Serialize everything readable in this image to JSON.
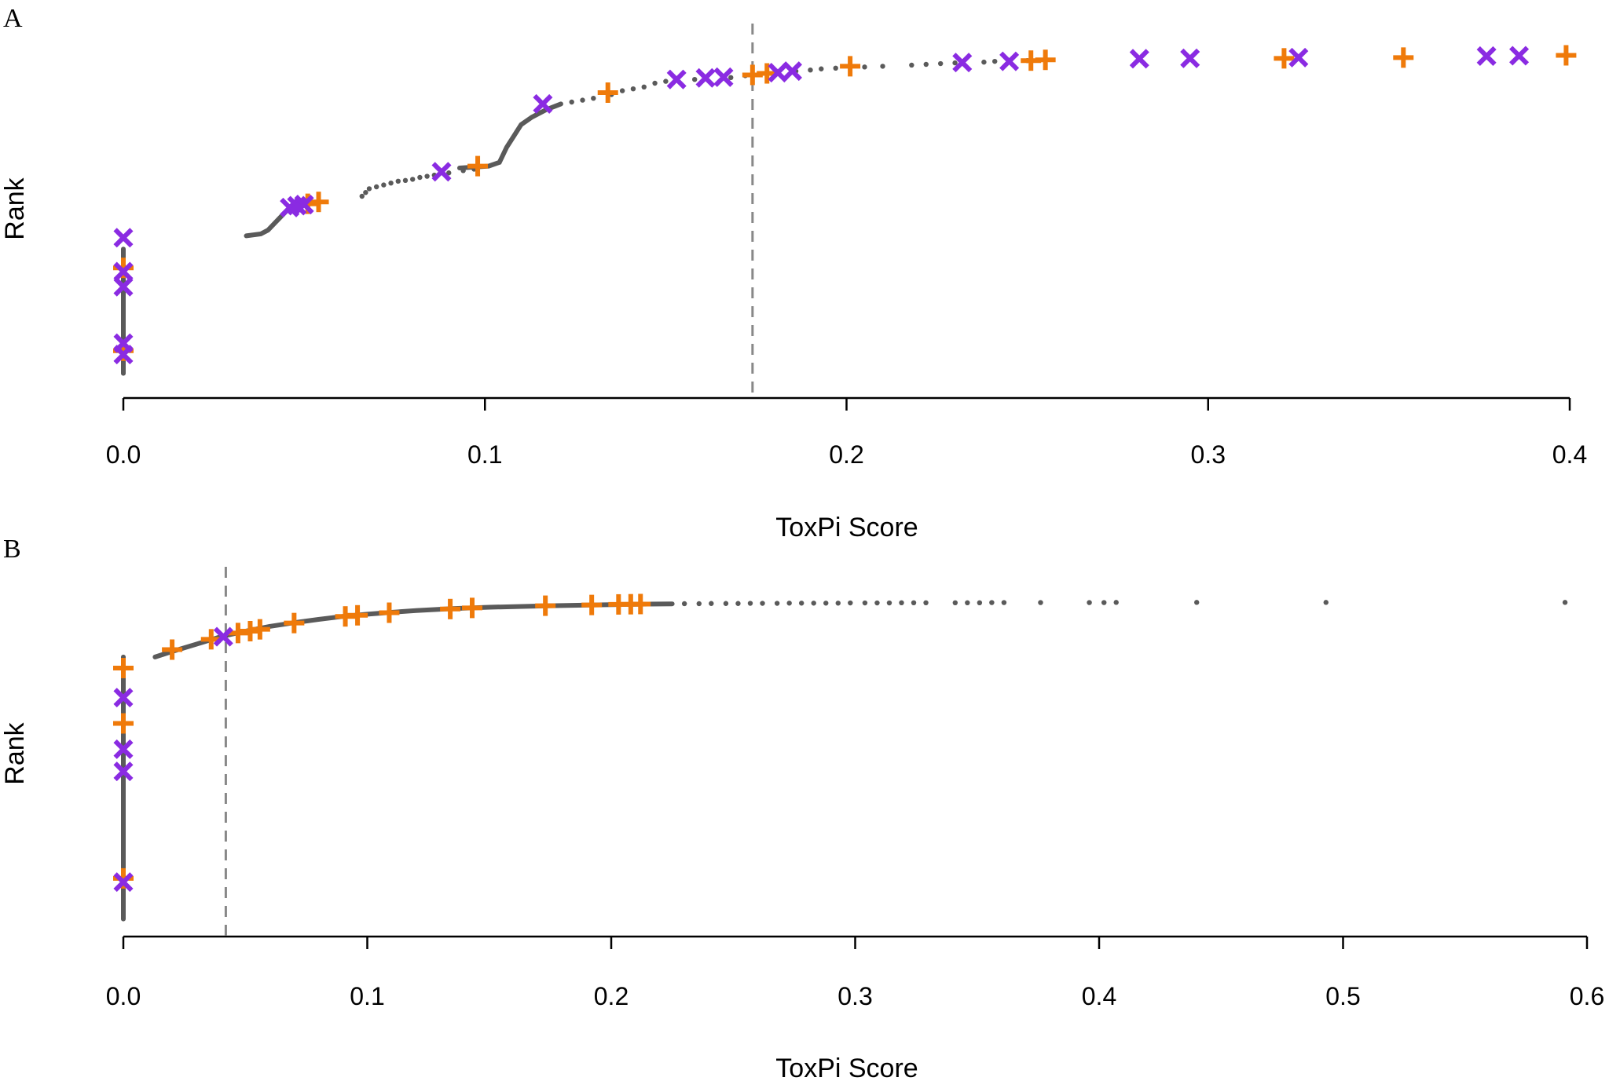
{
  "chart_data": [
    {
      "panel": "A",
      "type": "scatter",
      "xlabel": "ToxPi Score",
      "ylabel": "Rank",
      "xlim": [
        0.0,
        0.4
      ],
      "ylim": [
        0,
        100
      ],
      "xticks": [
        "0.0",
        "0.1",
        "0.2",
        "0.3",
        "0.4"
      ],
      "xtick_values": [
        0.0,
        0.1,
        0.2,
        0.3,
        0.4
      ],
      "threshold": 0.174,
      "zero_segment": [
        3,
        36
      ],
      "background_line": [
        [
          0.034,
          39.5
        ],
        [
          0.038,
          40
        ],
        [
          0.04,
          41
        ],
        [
          0.042,
          43
        ],
        [
          0.044,
          45
        ],
        [
          0.046,
          47
        ],
        [
          0.05,
          48
        ],
        [
          0.054,
          48.5
        ]
      ],
      "background_line2": [
        [
          0.093,
          57.5
        ],
        [
          0.101,
          58
        ],
        [
          0.104,
          59
        ],
        [
          0.106,
          63
        ],
        [
          0.108,
          66
        ],
        [
          0.11,
          69
        ],
        [
          0.113,
          71
        ],
        [
          0.117,
          73
        ],
        [
          0.121,
          74.5
        ]
      ],
      "background_dots": [
        [
          0.066,
          50
        ],
        [
          0.067,
          51
        ],
        [
          0.068,
          52
        ],
        [
          0.07,
          52.5
        ],
        [
          0.072,
          53
        ],
        [
          0.074,
          53.5
        ],
        [
          0.076,
          54
        ],
        [
          0.078,
          54.2
        ],
        [
          0.08,
          54.5
        ],
        [
          0.082,
          55
        ],
        [
          0.084,
          55.3
        ],
        [
          0.086,
          55.6
        ],
        [
          0.09,
          56.2
        ],
        [
          0.094,
          56.8
        ],
        [
          0.097,
          57.2
        ],
        [
          0.124,
          75
        ],
        [
          0.127,
          75.5
        ],
        [
          0.13,
          76
        ],
        [
          0.135,
          77
        ],
        [
          0.138,
          78
        ],
        [
          0.141,
          78.5
        ],
        [
          0.144,
          79
        ],
        [
          0.147,
          80
        ],
        [
          0.15,
          80.5
        ],
        [
          0.158,
          81
        ],
        [
          0.168,
          81.5
        ],
        [
          0.172,
          82
        ],
        [
          0.178,
          82.5
        ],
        [
          0.186,
          83.2
        ],
        [
          0.19,
          83.5
        ],
        [
          0.193,
          83.8
        ],
        [
          0.197,
          84
        ],
        [
          0.205,
          84.3
        ],
        [
          0.21,
          84.5
        ],
        [
          0.218,
          84.8
        ],
        [
          0.222,
          85
        ],
        [
          0.226,
          85.2
        ],
        [
          0.23,
          85.4
        ],
        [
          0.238,
          85.6
        ],
        [
          0.241,
          85.8
        ],
        [
          0.25,
          86
        ]
      ],
      "series": [
        {
          "name": "orange plus",
          "marker": "plus",
          "color": "#ef7a0a",
          "points": [
            [
              0.0,
              31
            ],
            [
              0.0,
              9
            ],
            [
              0.051,
              48
            ],
            [
              0.054,
              48.5
            ],
            [
              0.098,
              58
            ],
            [
              0.134,
              77.5
            ],
            [
              0.174,
              82.2
            ],
            [
              0.178,
              82.6
            ],
            [
              0.201,
              84.5
            ],
            [
              0.251,
              86
            ],
            [
              0.255,
              86.2
            ],
            [
              0.321,
              86.6
            ],
            [
              0.354,
              86.8
            ],
            [
              0.399,
              87.4
            ]
          ]
        },
        {
          "name": "purple x",
          "marker": "x",
          "color": "#8a2be2",
          "points": [
            [
              0.0,
              39
            ],
            [
              0.0,
              30
            ],
            [
              0.0,
              26
            ],
            [
              0.0,
              11
            ],
            [
              0.0,
              8
            ],
            [
              0.046,
              47
            ],
            [
              0.048,
              47.5
            ],
            [
              0.05,
              47.8
            ],
            [
              0.088,
              56.5
            ],
            [
              0.116,
              74.5
            ],
            [
              0.153,
              81
            ],
            [
              0.161,
              81.4
            ],
            [
              0.166,
              81.6
            ],
            [
              0.181,
              82.8
            ],
            [
              0.185,
              83.2
            ],
            [
              0.232,
              85.5
            ],
            [
              0.245,
              85.8
            ],
            [
              0.281,
              86.5
            ],
            [
              0.295,
              86.6
            ],
            [
              0.325,
              86.8
            ],
            [
              0.377,
              87.2
            ],
            [
              0.386,
              87.3
            ]
          ]
        }
      ]
    },
    {
      "panel": "B",
      "type": "scatter",
      "xlabel": "ToxPi Score",
      "ylabel": "Rank",
      "xlim": [
        0.0,
        0.6
      ],
      "ylim": [
        0,
        100
      ],
      "xticks": [
        "0.0",
        "0.1",
        "0.2",
        "0.3",
        "0.4",
        "0.5",
        "0.6"
      ],
      "xtick_values": [
        0.0,
        0.1,
        0.2,
        0.3,
        0.4,
        0.5,
        0.6
      ],
      "threshold": 0.042,
      "zero_segment": [
        2,
        73
      ],
      "background_line": [
        [
          0.013,
          73
        ],
        [
          0.02,
          74.5
        ],
        [
          0.03,
          76.5
        ],
        [
          0.04,
          78.5
        ],
        [
          0.05,
          80
        ],
        [
          0.06,
          81.3
        ],
        [
          0.07,
          82.3
        ],
        [
          0.08,
          83.2
        ],
        [
          0.09,
          84
        ],
        [
          0.1,
          84.6
        ],
        [
          0.11,
          85.1
        ],
        [
          0.12,
          85.6
        ],
        [
          0.135,
          86.1
        ],
        [
          0.15,
          86.5
        ],
        [
          0.175,
          86.9
        ],
        [
          0.2,
          87.2
        ],
        [
          0.215,
          87.35
        ],
        [
          0.225,
          87.4
        ]
      ],
      "background_dots": [
        [
          0.23,
          87.45
        ],
        [
          0.236,
          87.45
        ],
        [
          0.241,
          87.5
        ],
        [
          0.247,
          87.5
        ],
        [
          0.252,
          87.5
        ],
        [
          0.257,
          87.55
        ],
        [
          0.262,
          87.55
        ],
        [
          0.268,
          87.55
        ],
        [
          0.273,
          87.6
        ],
        [
          0.278,
          87.6
        ],
        [
          0.283,
          87.6
        ],
        [
          0.288,
          87.6
        ],
        [
          0.293,
          87.6
        ],
        [
          0.298,
          87.65
        ],
        [
          0.304,
          87.65
        ],
        [
          0.309,
          87.65
        ],
        [
          0.314,
          87.65
        ],
        [
          0.319,
          87.7
        ],
        [
          0.324,
          87.7
        ],
        [
          0.329,
          87.7
        ],
        [
          0.341,
          87.7
        ],
        [
          0.346,
          87.7
        ],
        [
          0.351,
          87.7
        ],
        [
          0.356,
          87.75
        ],
        [
          0.361,
          87.75
        ],
        [
          0.376,
          87.75
        ],
        [
          0.396,
          87.75
        ],
        [
          0.402,
          87.75
        ],
        [
          0.407,
          87.8
        ],
        [
          0.44,
          87.8
        ],
        [
          0.493,
          87.8
        ],
        [
          0.591,
          87.8
        ]
      ],
      "series": [
        {
          "name": "orange plus",
          "marker": "plus",
          "color": "#ef7a0a",
          "points": [
            [
              0.0,
              70
            ],
            [
              0.0,
              55
            ],
            [
              0.0,
              13
            ],
            [
              0.02,
              75
            ],
            [
              0.036,
              77.8
            ],
            [
              0.047,
              79.5
            ],
            [
              0.052,
              80
            ],
            [
              0.056,
              80.5
            ],
            [
              0.07,
              82.2
            ],
            [
              0.091,
              84
            ],
            [
              0.096,
              84.3
            ],
            [
              0.109,
              85
            ],
            [
              0.134,
              86
            ],
            [
              0.143,
              86.3
            ],
            [
              0.173,
              86.9
            ],
            [
              0.192,
              87.1
            ],
            [
              0.203,
              87.25
            ],
            [
              0.208,
              87.3
            ],
            [
              0.212,
              87.35
            ]
          ]
        },
        {
          "name": "purple x",
          "marker": "x",
          "color": "#8a2be2",
          "points": [
            [
              0.0,
              62
            ],
            [
              0.0,
              48
            ],
            [
              0.0,
              42
            ],
            [
              0.0,
              12
            ],
            [
              0.041,
              78.5
            ]
          ]
        }
      ]
    }
  ]
}
